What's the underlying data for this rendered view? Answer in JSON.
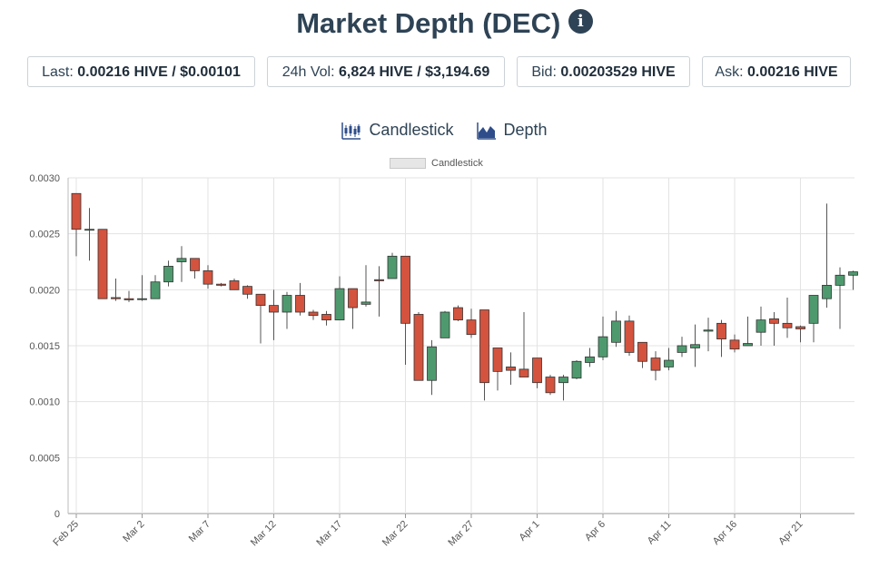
{
  "header": {
    "title": "Market Depth (DEC)",
    "info_icon": "info-icon"
  },
  "stats": {
    "last": {
      "label": "Last: ",
      "value": "0.00216 HIVE / $0.00101"
    },
    "vol": {
      "label": "24h Vol: ",
      "value": "6,824 HIVE / $3,194.69"
    },
    "bid": {
      "label": "Bid: ",
      "value": "0.00203529 HIVE"
    },
    "ask": {
      "label": "Ask: ",
      "value": "0.00216 HIVE"
    }
  },
  "tabs": [
    {
      "label": "Candlestick",
      "icon": "candlestick-icon"
    },
    {
      "label": "Depth",
      "icon": "depth-icon"
    }
  ],
  "colors": {
    "up": "#4e9a6e",
    "down": "#d4533e",
    "wick": "#555555",
    "title": "#2e4355"
  },
  "chart_data": {
    "type": "candlestick",
    "legend": [
      "Candlestick"
    ],
    "legend_position": "top-center",
    "grid": true,
    "y_ticks": [
      "0",
      "0.0005",
      "0.0010",
      "0.0015",
      "0.0020",
      "0.0025",
      "0.0030"
    ],
    "ylim": [
      0,
      0.003
    ],
    "x_ticks": [
      "Feb 25",
      "Mar 2",
      "Mar 7",
      "Mar 12",
      "Mar 17",
      "Mar 22",
      "Mar 27",
      "Apr 1",
      "Apr 6",
      "Apr 11",
      "Apr 16",
      "Apr 21"
    ],
    "candles": [
      {
        "d": "Feb 25",
        "o": 0.00286,
        "h": 0.00286,
        "l": 0.0023,
        "c": 0.00254
      },
      {
        "d": "Feb 26",
        "o": 0.00254,
        "h": 0.00273,
        "l": 0.00226,
        "c": 0.00254
      },
      {
        "d": "Feb 27",
        "o": 0.00254,
        "h": 0.00254,
        "l": 0.00192,
        "c": 0.00192
      },
      {
        "d": "Feb 28",
        "o": 0.00193,
        "h": 0.0021,
        "l": 0.0019,
        "c": 0.00192
      },
      {
        "d": "Mar 1",
        "o": 0.00192,
        "h": 0.00199,
        "l": 0.00189,
        "c": 0.00191
      },
      {
        "d": "Mar 2",
        "o": 0.00192,
        "h": 0.00213,
        "l": 0.0019,
        "c": 0.00192
      },
      {
        "d": "Mar 3",
        "o": 0.00192,
        "h": 0.00213,
        "l": 0.00192,
        "c": 0.00207
      },
      {
        "d": "Mar 4",
        "o": 0.00207,
        "h": 0.00226,
        "l": 0.00203,
        "c": 0.00221
      },
      {
        "d": "Mar 5",
        "o": 0.00225,
        "h": 0.00239,
        "l": 0.00207,
        "c": 0.00228
      },
      {
        "d": "Mar 6",
        "o": 0.00228,
        "h": 0.00228,
        "l": 0.0021,
        "c": 0.00217
      },
      {
        "d": "Mar 7",
        "o": 0.00217,
        "h": 0.00222,
        "l": 0.00201,
        "c": 0.00205
      },
      {
        "d": "Mar 8",
        "o": 0.00205,
        "h": 0.00206,
        "l": 0.00203,
        "c": 0.00204
      },
      {
        "d": "Mar 9",
        "o": 0.00208,
        "h": 0.0021,
        "l": 0.002,
        "c": 0.002
      },
      {
        "d": "Mar 10",
        "o": 0.00203,
        "h": 0.00204,
        "l": 0.00192,
        "c": 0.00196
      },
      {
        "d": "Mar 11",
        "o": 0.00196,
        "h": 0.00196,
        "l": 0.00152,
        "c": 0.00186
      },
      {
        "d": "Mar 12",
        "o": 0.00186,
        "h": 0.002,
        "l": 0.00155,
        "c": 0.0018
      },
      {
        "d": "Mar 13",
        "o": 0.0018,
        "h": 0.00198,
        "l": 0.00165,
        "c": 0.00195
      },
      {
        "d": "Mar 14",
        "o": 0.00195,
        "h": 0.00206,
        "l": 0.00177,
        "c": 0.0018
      },
      {
        "d": "Mar 15",
        "o": 0.0018,
        "h": 0.00182,
        "l": 0.00173,
        "c": 0.00177
      },
      {
        "d": "Mar 16",
        "o": 0.00178,
        "h": 0.00181,
        "l": 0.00168,
        "c": 0.00173
      },
      {
        "d": "Mar 17",
        "o": 0.00173,
        "h": 0.00212,
        "l": 0.00173,
        "c": 0.00201
      },
      {
        "d": "Mar 18",
        "o": 0.00201,
        "h": 0.00201,
        "l": 0.00165,
        "c": 0.00184
      },
      {
        "d": "Mar 19",
        "o": 0.00187,
        "h": 0.00222,
        "l": 0.00185,
        "c": 0.00189
      },
      {
        "d": "Mar 20",
        "o": 0.00209,
        "h": 0.00221,
        "l": 0.00176,
        "c": 0.00208
      },
      {
        "d": "Mar 21",
        "o": 0.0021,
        "h": 0.00233,
        "l": 0.0021,
        "c": 0.0023
      },
      {
        "d": "Mar 22",
        "o": 0.0023,
        "h": 0.0023,
        "l": 0.00133,
        "c": 0.0017
      },
      {
        "d": "Mar 23",
        "o": 0.00178,
        "h": 0.0018,
        "l": 0.00119,
        "c": 0.00119
      },
      {
        "d": "Mar 24",
        "o": 0.00119,
        "h": 0.00155,
        "l": 0.00106,
        "c": 0.00149
      },
      {
        "d": "Mar 25",
        "o": 0.00157,
        "h": 0.00181,
        "l": 0.00157,
        "c": 0.0018
      },
      {
        "d": "Mar 26",
        "o": 0.00184,
        "h": 0.00186,
        "l": 0.00172,
        "c": 0.00173
      },
      {
        "d": "Mar 27",
        "o": 0.00173,
        "h": 0.00183,
        "l": 0.00157,
        "c": 0.0016
      },
      {
        "d": "Mar 28",
        "o": 0.00182,
        "h": 0.00182,
        "l": 0.00101,
        "c": 0.00117
      },
      {
        "d": "Mar 29",
        "o": 0.00148,
        "h": 0.00148,
        "l": 0.0011,
        "c": 0.00127
      },
      {
        "d": "Mar 30",
        "o": 0.00131,
        "h": 0.00144,
        "l": 0.00115,
        "c": 0.00128
      },
      {
        "d": "Mar 31",
        "o": 0.00129,
        "h": 0.0018,
        "l": 0.00123,
        "c": 0.00122
      },
      {
        "d": "Apr 1",
        "o": 0.00139,
        "h": 0.00139,
        "l": 0.00112,
        "c": 0.00117
      },
      {
        "d": "Apr 2",
        "o": 0.00122,
        "h": 0.00124,
        "l": 0.00106,
        "c": 0.00108
      },
      {
        "d": "Apr 3",
        "o": 0.00117,
        "h": 0.00124,
        "l": 0.00101,
        "c": 0.00122
      },
      {
        "d": "Apr 4",
        "o": 0.00121,
        "h": 0.00137,
        "l": 0.0012,
        "c": 0.00136
      },
      {
        "d": "Apr 5",
        "o": 0.00135,
        "h": 0.00148,
        "l": 0.00131,
        "c": 0.0014
      },
      {
        "d": "Apr 6",
        "o": 0.0014,
        "h": 0.00176,
        "l": 0.00137,
        "c": 0.00158
      },
      {
        "d": "Apr 7",
        "o": 0.00153,
        "h": 0.00181,
        "l": 0.00149,
        "c": 0.00172
      },
      {
        "d": "Apr 8",
        "o": 0.00172,
        "h": 0.00177,
        "l": 0.00141,
        "c": 0.00144
      },
      {
        "d": "Apr 9",
        "o": 0.00153,
        "h": 0.00153,
        "l": 0.0013,
        "c": 0.00136
      },
      {
        "d": "Apr 10",
        "o": 0.00139,
        "h": 0.00145,
        "l": 0.00119,
        "c": 0.00128
      },
      {
        "d": "Apr 11",
        "o": 0.00131,
        "h": 0.00148,
        "l": 0.00128,
        "c": 0.00137
      },
      {
        "d": "Apr 12",
        "o": 0.00144,
        "h": 0.00158,
        "l": 0.0014,
        "c": 0.0015
      },
      {
        "d": "Apr 13",
        "o": 0.00148,
        "h": 0.00169,
        "l": 0.00131,
        "c": 0.00151
      },
      {
        "d": "Apr 14",
        "o": 0.00163,
        "h": 0.00175,
        "l": 0.00145,
        "c": 0.00164
      },
      {
        "d": "Apr 15",
        "o": 0.0017,
        "h": 0.00173,
        "l": 0.0014,
        "c": 0.00156
      },
      {
        "d": "Apr 16",
        "o": 0.00155,
        "h": 0.0016,
        "l": 0.00144,
        "c": 0.00147
      },
      {
        "d": "Apr 17",
        "o": 0.0015,
        "h": 0.00176,
        "l": 0.0015,
        "c": 0.00152
      },
      {
        "d": "Apr 18",
        "o": 0.00162,
        "h": 0.00185,
        "l": 0.0015,
        "c": 0.00173
      },
      {
        "d": "Apr 19",
        "o": 0.00174,
        "h": 0.0018,
        "l": 0.0015,
        "c": 0.0017
      },
      {
        "d": "Apr 20",
        "o": 0.0017,
        "h": 0.00193,
        "l": 0.00157,
        "c": 0.00166
      },
      {
        "d": "Apr 21",
        "o": 0.00167,
        "h": 0.00168,
        "l": 0.00153,
        "c": 0.00165
      },
      {
        "d": "Apr 22",
        "o": 0.0017,
        "h": 0.00195,
        "l": 0.00153,
        "c": 0.00195
      },
      {
        "d": "Apr 23",
        "o": 0.00192,
        "h": 0.00277,
        "l": 0.00184,
        "c": 0.00204
      },
      {
        "d": "Apr 24",
        "o": 0.00204,
        "h": 0.0022,
        "l": 0.00165,
        "c": 0.00213
      },
      {
        "d": "Apr 25",
        "o": 0.00213,
        "h": 0.00217,
        "l": 0.002,
        "c": 0.00216
      }
    ]
  }
}
